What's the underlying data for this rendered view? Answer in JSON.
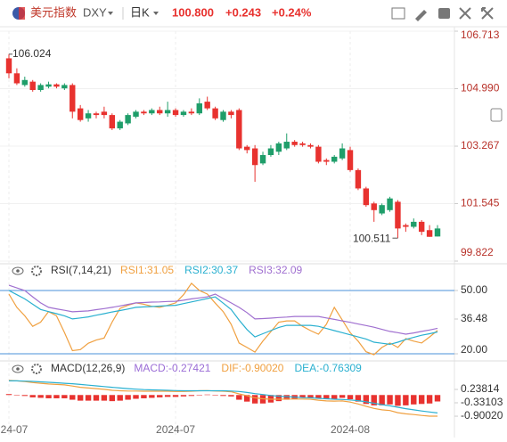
{
  "header": {
    "name": "美元指数",
    "symbol": "DXY",
    "period": "日K",
    "price": "100.800",
    "change": "+0.243",
    "change_pct": "+0.24%"
  },
  "chart_data": [
    {
      "type": "candlestick",
      "up_color": "#1f9e6a",
      "down_color": "#e8322f",
      "tick_color": "#b8322a",
      "grid": true,
      "categories": [
        "24-07",
        null,
        null,
        null,
        null,
        null,
        null,
        null,
        null,
        null,
        null,
        null,
        null,
        null,
        null,
        null,
        null,
        null,
        null,
        null,
        null,
        "2024-07",
        null,
        null,
        null,
        null,
        null,
        null,
        null,
        null,
        null,
        null,
        null,
        null,
        null,
        null,
        null,
        null,
        null,
        null,
        null,
        null,
        null,
        "2024-08",
        null,
        null,
        null,
        null,
        null,
        null,
        null,
        null,
        null,
        null,
        null
      ],
      "open": [
        105.9,
        105.45,
        105.1,
        105.2,
        104.95,
        105.05,
        105.12,
        105.0,
        105.1,
        104.4,
        104.1,
        104.25,
        104.3,
        104.2,
        103.8,
        103.95,
        104.15,
        104.3,
        104.25,
        104.35,
        104.25,
        104.35,
        104.2,
        104.3,
        104.25,
        104.6,
        104.4,
        104.05,
        104.3,
        104.35,
        103.25,
        103.2,
        102.75,
        103.0,
        103.1,
        103.2,
        103.4,
        103.35,
        103.3,
        103.25,
        102.85,
        102.8,
        102.9,
        103.15,
        102.55,
        102.0,
        101.55,
        101.25,
        101.35,
        101.6,
        100.9,
        100.85,
        101.0,
        100.75,
        100.56
      ],
      "high": [
        106.024,
        105.6,
        105.35,
        105.25,
        105.15,
        105.2,
        105.15,
        105.15,
        105.15,
        104.5,
        104.35,
        104.3,
        104.45,
        104.25,
        104.05,
        104.25,
        104.35,
        104.35,
        104.4,
        104.45,
        104.6,
        104.4,
        104.35,
        104.4,
        104.7,
        104.75,
        104.45,
        104.35,
        104.35,
        104.4,
        103.3,
        103.3,
        103.1,
        103.3,
        103.4,
        103.65,
        103.45,
        103.4,
        103.35,
        103.3,
        102.9,
        103.0,
        103.35,
        103.25,
        102.6,
        102.05,
        101.6,
        101.55,
        101.75,
        101.65,
        100.95,
        101.1,
        101.05,
        100.9,
        100.9
      ],
      "low": [
        105.3,
        105.1,
        105.05,
        104.9,
        104.9,
        105.0,
        105.0,
        104.95,
        104.1,
        104.0,
        104.0,
        104.1,
        104.1,
        103.75,
        103.75,
        103.9,
        104.1,
        104.2,
        104.2,
        104.2,
        104.15,
        104.15,
        104.15,
        104.2,
        104.2,
        104.35,
        104.05,
        104.0,
        104.1,
        103.15,
        103.05,
        102.2,
        102.7,
        102.95,
        103.0,
        103.15,
        103.25,
        103.25,
        103.2,
        102.75,
        102.7,
        102.75,
        102.85,
        102.5,
        101.95,
        101.45,
        101.0,
        101.2,
        101.3,
        100.511,
        100.7,
        100.8,
        100.6,
        100.55,
        100.56
      ],
      "close": [
        105.45,
        105.15,
        105.25,
        104.95,
        105.1,
        105.12,
        105.05,
        105.1,
        104.3,
        104.05,
        104.25,
        104.2,
        104.2,
        103.8,
        104.0,
        104.2,
        104.3,
        104.25,
        104.35,
        104.25,
        104.35,
        104.2,
        104.3,
        104.25,
        104.55,
        104.4,
        104.1,
        104.3,
        104.2,
        103.2,
        103.15,
        102.7,
        103.0,
        103.2,
        103.35,
        103.4,
        103.3,
        103.3,
        103.25,
        102.8,
        102.8,
        102.95,
        103.2,
        102.55,
        102.0,
        101.5,
        101.35,
        101.5,
        101.7,
        100.8,
        100.85,
        101.0,
        100.7,
        100.55,
        100.8
      ],
      "ylim": [
        99.822,
        106.713
      ],
      "yticks": [
        106.713,
        {
          "value": 104.99,
          "label": "104.990"
        },
        103.267,
        101.545,
        99.822
      ]
    },
    {
      "type": "line",
      "title": "RSI(7,14,21)",
      "tick_color": "#333333",
      "reference_lines": [
        50,
        20
      ],
      "reference_color": "#4a90d9",
      "ylim": [
        17.9,
        55.9
      ],
      "yticks": [
        {
          "value": 50,
          "label": "50.00"
        },
        36.48,
        {
          "value": 20,
          "label": "20.00"
        }
      ],
      "series": [
        {
          "name": "RSI1:31.05",
          "color": "#f0a040",
          "values": [
            48.3,
            42.0,
            38.0,
            33.0,
            35.0,
            40.0,
            38.0,
            30.0,
            21.5,
            22.0,
            25.0,
            26.5,
            27.5,
            35.0,
            41.5,
            43.0,
            44.1,
            43.5,
            42.5,
            42.0,
            43.0,
            44.1,
            48.0,
            53.4,
            50.0,
            48.3,
            44.0,
            40.0,
            34.0,
            25.1,
            23.0,
            20.8,
            26.0,
            30.5,
            35.0,
            35.6,
            35.6,
            33.0,
            31.0,
            29.3,
            34.0,
            42.0,
            36.0,
            30.0,
            26.0,
            21.0,
            19.6,
            23.0,
            25.1,
            23.0,
            27.2,
            26.0,
            25.1,
            28.0,
            31.05
          ]
        },
        {
          "name": "RSI2:30.37",
          "color": "#2ab0d0",
          "values": [
            50.0,
            48.0,
            46.0,
            43.5,
            41.0,
            40.0,
            39.0,
            38.0,
            36.5,
            37.0,
            37.5,
            38.3,
            39.0,
            39.8,
            40.5,
            41.2,
            42.0,
            42.2,
            42.4,
            42.6,
            42.8,
            43.0,
            43.8,
            44.6,
            45.4,
            46.2,
            47.0,
            44.0,
            41.0,
            36.0,
            31.5,
            28.0,
            29.5,
            31.0,
            32.5,
            33.5,
            33.5,
            33.5,
            33.5,
            33.0,
            32.0,
            31.0,
            30.0,
            29.0,
            28.0,
            27.0,
            25.5,
            25.0,
            24.5,
            25.5,
            26.8,
            27.8,
            28.8,
            29.5,
            30.37
          ]
        },
        {
          "name": "RSI3:32.09",
          "color": "#a070d0",
          "values": [
            52.5,
            51.2,
            50.0,
            47.0,
            44.1,
            42.0,
            41.3,
            40.6,
            39.9,
            40.1,
            40.3,
            40.9,
            41.4,
            42.0,
            42.7,
            43.4,
            44.1,
            44.3,
            44.5,
            44.6,
            44.8,
            44.9,
            45.4,
            46.0,
            46.5,
            47.0,
            48.3,
            46.2,
            44.1,
            42.0,
            39.5,
            36.5,
            36.7,
            36.9,
            37.2,
            37.4,
            37.7,
            37.7,
            37.7,
            37.7,
            37.0,
            36.3,
            35.6,
            34.9,
            34.1,
            33.4,
            32.6,
            31.6,
            30.6,
            30.0,
            29.3,
            29.9,
            30.6,
            31.3,
            32.09
          ]
        }
      ]
    },
    {
      "type": "combo",
      "title": "MACD(12,26,9)",
      "tick_color": "#333333",
      "ylim": [
        -1.77,
        0.73
      ],
      "yticks": [
        0.23814,
        -0.33103,
        {
          "value": -0.9002,
          "label": "-0.90020"
        }
      ],
      "series": [
        {
          "name": "MACD:-0.27421",
          "type": "bar",
          "color": "#e8322f",
          "legend_color": "#9b6dd6",
          "values": [
            0.04,
            0.0,
            -0.04,
            -0.1,
            -0.12,
            -0.14,
            -0.14,
            -0.14,
            -0.2,
            -0.24,
            -0.24,
            -0.24,
            -0.24,
            -0.26,
            -0.24,
            -0.2,
            -0.16,
            -0.14,
            -0.12,
            -0.1,
            -0.08,
            -0.08,
            -0.06,
            -0.04,
            0.0,
            0.02,
            -0.02,
            -0.04,
            -0.06,
            -0.2,
            -0.28,
            -0.36,
            -0.36,
            -0.32,
            -0.26,
            -0.2,
            -0.16,
            -0.12,
            -0.12,
            -0.16,
            -0.18,
            -0.16,
            -0.12,
            -0.18,
            -0.28,
            -0.38,
            -0.44,
            -0.44,
            -0.4,
            -0.46,
            -0.44,
            -0.4,
            -0.38,
            -0.36,
            -0.27421
          ]
        },
        {
          "name": "DIF:-0.90020",
          "type": "line",
          "color": "#f0a040",
          "values": [
            0.62,
            0.6,
            0.57,
            0.53,
            0.5,
            0.47,
            0.45,
            0.43,
            0.38,
            0.33,
            0.3,
            0.27,
            0.24,
            0.2,
            0.18,
            0.17,
            0.17,
            0.16,
            0.16,
            0.16,
            0.16,
            0.15,
            0.15,
            0.16,
            0.18,
            0.19,
            0.17,
            0.16,
            0.14,
            0.05,
            -0.03,
            -0.12,
            -0.16,
            -0.18,
            -0.18,
            -0.17,
            -0.17,
            -0.17,
            -0.18,
            -0.22,
            -0.25,
            -0.26,
            -0.25,
            -0.3,
            -0.38,
            -0.48,
            -0.57,
            -0.63,
            -0.66,
            -0.75,
            -0.8,
            -0.83,
            -0.87,
            -0.9,
            -0.9002
          ]
        },
        {
          "name": "DEA:-0.76309",
          "type": "line",
          "color": "#2ab0d0",
          "values": [
            0.6,
            0.6,
            0.59,
            0.58,
            0.56,
            0.54,
            0.52,
            0.5,
            0.48,
            0.45,
            0.42,
            0.39,
            0.36,
            0.33,
            0.3,
            0.27,
            0.25,
            0.23,
            0.22,
            0.21,
            0.2,
            0.19,
            0.18,
            0.18,
            0.18,
            0.18,
            0.18,
            0.18,
            0.17,
            0.15,
            0.11,
            0.06,
            0.02,
            -0.02,
            -0.05,
            -0.07,
            -0.09,
            -0.11,
            -0.12,
            -0.14,
            -0.16,
            -0.18,
            -0.19,
            -0.21,
            -0.24,
            -0.29,
            -0.35,
            -0.41,
            -0.46,
            -0.52,
            -0.58,
            -0.63,
            -0.68,
            -0.72,
            -0.76309
          ]
        }
      ]
    }
  ]
}
